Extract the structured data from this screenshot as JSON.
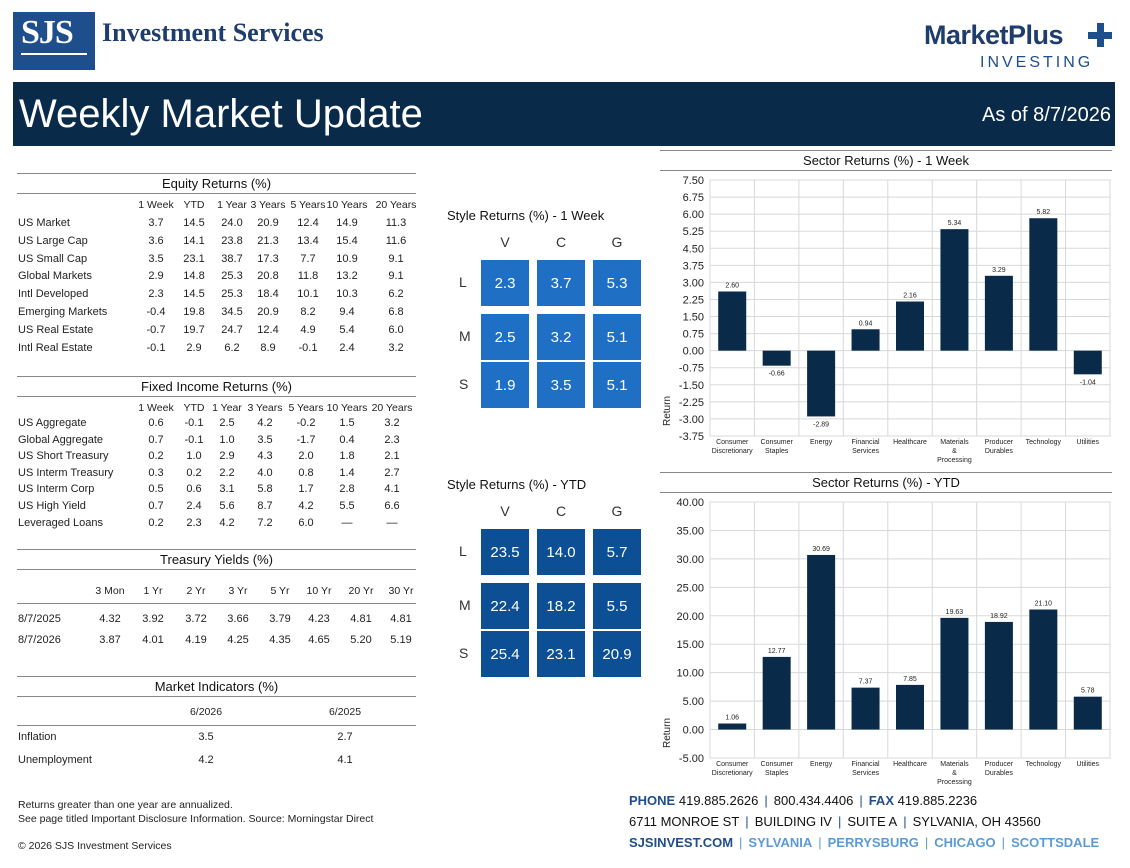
{
  "header": {
    "logo_mark": "SJS",
    "brand_name": "Investment Services",
    "mp_title": "MarketPlus",
    "mp_sub": "INVESTING",
    "banner_title": "Weekly Market Update",
    "as_of": "As of 8/7/2026"
  },
  "equity": {
    "title": "Equity Returns (%)",
    "columns": [
      "1 Week",
      "YTD",
      "1 Year",
      "3 Years",
      "5 Years",
      "10 Years",
      "20 Years"
    ],
    "rows": [
      {
        "label": "US Market",
        "values": [
          "3.7",
          "14.5",
          "24.0",
          "20.9",
          "12.4",
          "14.9",
          "11.3"
        ]
      },
      {
        "label": "US Large Cap",
        "values": [
          "3.6",
          "14.1",
          "23.8",
          "21.3",
          "13.4",
          "15.4",
          "11.6"
        ]
      },
      {
        "label": "US Small Cap",
        "values": [
          "3.5",
          "23.1",
          "38.7",
          "17.3",
          "7.7",
          "10.9",
          "9.1"
        ]
      },
      {
        "label": "Global Markets",
        "values": [
          "2.9",
          "14.8",
          "25.3",
          "20.8",
          "11.8",
          "13.2",
          "9.1"
        ]
      },
      {
        "label": "Intl Developed",
        "values": [
          "2.3",
          "14.5",
          "25.3",
          "18.4",
          "10.1",
          "10.3",
          "6.2"
        ]
      },
      {
        "label": "Emerging Markets",
        "values": [
          "-0.4",
          "19.8",
          "34.5",
          "20.9",
          "8.2",
          "9.4",
          "6.8"
        ]
      },
      {
        "label": "US Real Estate",
        "values": [
          "-0.7",
          "19.7",
          "24.7",
          "12.4",
          "4.9",
          "5.4",
          "6.0"
        ]
      },
      {
        "label": "Intl Real Estate",
        "values": [
          "-0.1",
          "2.9",
          "6.2",
          "8.9",
          "-0.1",
          "2.4",
          "3.2"
        ]
      }
    ]
  },
  "fixed_income": {
    "title": "Fixed Income Returns (%)",
    "columns": [
      "1 Week",
      "YTD",
      "1 Year",
      "3 Years",
      "5 Years",
      "10 Years",
      "20 Years"
    ],
    "rows": [
      {
        "label": "US Aggregate",
        "values": [
          "0.6",
          "-0.1",
          "2.5",
          "4.2",
          "-0.2",
          "1.5",
          "3.2"
        ]
      },
      {
        "label": "Global Aggregate",
        "values": [
          "0.7",
          "-0.1",
          "1.0",
          "3.5",
          "-1.7",
          "0.4",
          "2.3"
        ]
      },
      {
        "label": "US Short Treasury",
        "values": [
          "0.2",
          "1.0",
          "2.9",
          "4.3",
          "2.0",
          "1.8",
          "2.1"
        ]
      },
      {
        "label": "US Interm Treasury",
        "values": [
          "0.3",
          "0.2",
          "2.2",
          "4.0",
          "0.8",
          "1.4",
          "2.7"
        ]
      },
      {
        "label": "US Interm Corp",
        "values": [
          "0.5",
          "0.6",
          "3.1",
          "5.8",
          "1.7",
          "2.8",
          "4.1"
        ]
      },
      {
        "label": "US High Yield",
        "values": [
          "0.7",
          "2.4",
          "5.6",
          "8.7",
          "4.2",
          "5.5",
          "6.6"
        ]
      },
      {
        "label": "Leveraged Loans",
        "values": [
          "0.2",
          "2.3",
          "4.2",
          "7.2",
          "6.0",
          "—",
          "—"
        ]
      }
    ]
  },
  "treasury": {
    "title": "Treasury Yields (%)",
    "columns": [
      "3 Mon",
      "1 Yr",
      "2 Yr",
      "3 Yr",
      "5 Yr",
      "10 Yr",
      "20 Yr",
      "30 Yr"
    ],
    "rows": [
      {
        "label": "8/7/2025",
        "values": [
          "4.32",
          "3.92",
          "3.72",
          "3.66",
          "3.79",
          "4.23",
          "4.81",
          "4.81"
        ]
      },
      {
        "label": "8/7/2026",
        "values": [
          "3.87",
          "4.01",
          "4.19",
          "4.25",
          "4.35",
          "4.65",
          "5.20",
          "5.19"
        ]
      }
    ]
  },
  "indicators": {
    "title": "Market Indicators (%)",
    "columns": [
      "6/2026",
      "6/2025"
    ],
    "rows": [
      {
        "label": "Inflation",
        "values": [
          "3.5",
          "2.7"
        ]
      },
      {
        "label": "Unemployment",
        "values": [
          "4.2",
          "4.1"
        ]
      }
    ]
  },
  "style_week": {
    "title": "Style Returns (%)  - 1 Week",
    "cols": [
      "V",
      "C",
      "G"
    ],
    "rows": [
      "L",
      "M",
      "S"
    ],
    "values": [
      [
        "2.3",
        "3.7",
        "5.3"
      ],
      [
        "2.5",
        "3.2",
        "5.1"
      ],
      [
        "1.9",
        "3.5",
        "5.1"
      ]
    ],
    "color": "#1f6fc5"
  },
  "style_ytd": {
    "title": "Style Returns (%)  - YTD",
    "cols": [
      "V",
      "C",
      "G"
    ],
    "rows": [
      "L",
      "M",
      "S"
    ],
    "values": [
      [
        "23.5",
        "14.0",
        "5.7"
      ],
      [
        "22.4",
        "18.2",
        "5.5"
      ],
      [
        "25.4",
        "23.1",
        "20.9"
      ]
    ],
    "color": "#0d4f94"
  },
  "chart_data": [
    {
      "type": "bar",
      "title": "Sector Returns (%)  - 1 Week",
      "ylabel": "Return",
      "categories": [
        [
          "Consumer",
          "Discretionary"
        ],
        [
          "Consumer",
          "Staples"
        ],
        [
          "Energy"
        ],
        [
          "Financial",
          "Services"
        ],
        [
          "Healthcare"
        ],
        [
          "Materials",
          "&",
          "Processing"
        ],
        [
          "Producer",
          "Durables"
        ],
        [
          "Technology"
        ],
        [
          "Utilities"
        ]
      ],
      "values": [
        2.6,
        -0.66,
        -2.89,
        0.94,
        2.16,
        5.34,
        3.29,
        5.82,
        -1.04
      ],
      "value_labels": [
        "2.60",
        "-0.66",
        "-2.89",
        "0.94",
        "2.16",
        "5.34",
        "3.29",
        "5.82",
        "-1.04"
      ],
      "ylim": [
        -3.75,
        7.5
      ],
      "yticks": [
        "7.50",
        "6.75",
        "6.00",
        "5.25",
        "4.50",
        "3.75",
        "3.00",
        "2.25",
        "1.50",
        "0.75",
        "0.00",
        "-0.75",
        "-1.50",
        "-2.25",
        "-3.00",
        "-3.75"
      ],
      "ytick_values": [
        7.5,
        6.75,
        6.0,
        5.25,
        4.5,
        3.75,
        3.0,
        2.25,
        1.5,
        0.75,
        0.0,
        -0.75,
        -1.5,
        -2.25,
        -3.0,
        -3.75
      ],
      "grid": true,
      "bar_color": "#0a2a4a"
    },
    {
      "type": "bar",
      "title": "Sector Returns (%)  - YTD",
      "ylabel": "Return",
      "categories": [
        [
          "Consumer",
          "Discretionary"
        ],
        [
          "Consumer",
          "Staples"
        ],
        [
          "Energy"
        ],
        [
          "Financial",
          "Services"
        ],
        [
          "Healthcare"
        ],
        [
          "Materials",
          "&",
          "Processing"
        ],
        [
          "Producer",
          "Durables"
        ],
        [
          "Technology"
        ],
        [
          "Utilities"
        ]
      ],
      "values": [
        1.06,
        12.77,
        30.69,
        7.37,
        7.85,
        19.63,
        18.92,
        21.1,
        5.78
      ],
      "value_labels": [
        "1.06",
        "12.77",
        "30.69",
        "7.37",
        "7.85",
        "19.63",
        "18.92",
        "21.10",
        "5.78"
      ],
      "ylim": [
        -5.0,
        40.0
      ],
      "yticks": [
        "40.00",
        "35.00",
        "30.00",
        "25.00",
        "20.00",
        "15.00",
        "10.00",
        "5.00",
        "0.00",
        "-5.00"
      ],
      "ytick_values": [
        40,
        35,
        30,
        25,
        20,
        15,
        10,
        5,
        0,
        -5
      ],
      "grid": true,
      "bar_color": "#0a2a4a"
    }
  ],
  "footer": {
    "note1": "Returns greater than one year are annualized.",
    "note2": "See page titled Important Disclosure Information. Source: Morningstar Direct",
    "copyright": "© 2026 SJS Investment Services",
    "phone_label": "PHONE",
    "phone1": "419.885.2626",
    "phone2": "800.434.4406",
    "fax_label": "FAX",
    "fax": "419.885.2236",
    "address": [
      "6711 MONROE ST",
      "BUILDING IV",
      "SUITE A",
      "SYLVANIA, OH 43560"
    ],
    "website": "SJSINVEST.COM",
    "cities": [
      "SYLVANIA",
      "PERRYSBURG",
      "CHICAGO",
      "SCOTTSDALE"
    ]
  }
}
